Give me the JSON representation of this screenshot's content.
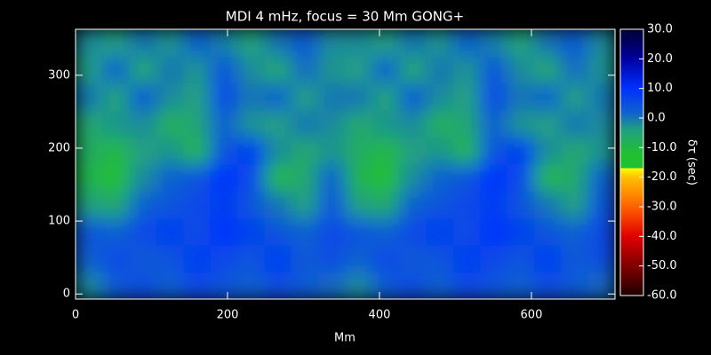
{
  "chart_data": {
    "type": "heatmap",
    "title": "MDI    4 mHz, focus = 30 Mm    GONG+",
    "xlabel": "Mm",
    "colorbar_label": "δτ (sec)",
    "x": [
      17.75,
      53.25,
      88.75,
      124.25,
      159.75,
      195.25,
      230.75,
      266.25,
      301.75,
      337.25,
      372.75,
      408.25,
      443.75,
      479.25,
      514.75,
      550.25,
      585.75,
      621.25,
      656.75,
      692.25
    ],
    "y": [
      11.5,
      48.5,
      85.5,
      122.5,
      159.5,
      196.5,
      233.5,
      270.5,
      307.5,
      344.5
    ],
    "z": [
      [
        -2,
        3,
        5,
        2,
        6,
        4,
        2,
        5,
        3,
        1,
        -2,
        3,
        5,
        2,
        6,
        4,
        2,
        5,
        3,
        1
      ],
      [
        2,
        6,
        3,
        4,
        8,
        6,
        4,
        8,
        3,
        5,
        2,
        6,
        3,
        4,
        8,
        6,
        4,
        8,
        3,
        5
      ],
      [
        4,
        2,
        6,
        8,
        5,
        10,
        7,
        4,
        2,
        6,
        4,
        2,
        6,
        8,
        5,
        10,
        7,
        4,
        2,
        6
      ],
      [
        -4,
        -6,
        2,
        4,
        6,
        8,
        4,
        0,
        -4,
        4,
        -4,
        -6,
        2,
        4,
        6,
        8,
        4,
        0,
        -4,
        4
      ],
      [
        -9,
        -13,
        -2,
        2,
        4,
        10,
        6,
        -10,
        -6,
        2,
        -9,
        -13,
        -2,
        2,
        4,
        10,
        6,
        -10,
        -6,
        2
      ],
      [
        -7,
        -10,
        -4,
        -3,
        -9,
        4,
        8,
        -2,
        -6,
        -3,
        -7,
        -10,
        -4,
        -3,
        -9,
        4,
        8,
        -2,
        -6,
        -3
      ],
      [
        -6,
        -3,
        -2,
        -8,
        -5,
        2,
        -3,
        -4,
        0,
        -2,
        -6,
        -3,
        -2,
        -8,
        -5,
        2,
        -3,
        -4,
        0,
        -2
      ],
      [
        0,
        -5,
        3,
        -2,
        -4,
        6,
        0,
        2,
        -4,
        0,
        0,
        -5,
        3,
        -2,
        -4,
        6,
        0,
        2,
        -4,
        0
      ],
      [
        -4,
        2,
        -6,
        0,
        -3,
        4,
        -2,
        -6,
        1,
        -3,
        -4,
        2,
        -6,
        0,
        -3,
        4,
        -2,
        -6,
        1,
        -3
      ],
      [
        -2,
        -4,
        0,
        -3,
        2,
        -1,
        -5,
        0,
        3,
        -2,
        -2,
        -4,
        0,
        -3,
        2,
        -1,
        -5,
        0,
        3,
        -2
      ]
    ],
    "xlim": [
      0,
      710
    ],
    "xticks": [
      0,
      200,
      400,
      600
    ],
    "ylim": [
      -7,
      363
    ],
    "yticks": [
      0,
      100,
      200,
      300
    ],
    "clim": [
      -60,
      30
    ],
    "cticks": [
      {
        "value": 30,
        "label": "30.0"
      },
      {
        "value": 20,
        "label": "20.0"
      },
      {
        "value": 10,
        "label": "10.0"
      },
      {
        "value": 0,
        "label": "0.0"
      },
      {
        "value": -10,
        "label": "-10.0"
      },
      {
        "value": -20,
        "label": "-20.0"
      },
      {
        "value": -30,
        "label": "-30.0"
      },
      {
        "value": -40,
        "label": "-40.0"
      },
      {
        "value": -50,
        "label": "-50.0"
      },
      {
        "value": -60,
        "label": "-60.0"
      }
    ],
    "colorscale": [
      [
        -60,
        "#200000"
      ],
      [
        -50,
        "#800000"
      ],
      [
        -40,
        "#e00000"
      ],
      [
        -30,
        "#ff6000"
      ],
      [
        -20,
        "#ffc000"
      ],
      [
        -17,
        "#ffff00"
      ],
      [
        -17,
        "#20c030"
      ],
      [
        -12,
        "#20c030"
      ],
      [
        -4,
        "#20a080"
      ],
      [
        2,
        "#1060d0"
      ],
      [
        10,
        "#0030ff"
      ],
      [
        20,
        "#0000a0"
      ],
      [
        30,
        "#000030"
      ]
    ]
  }
}
